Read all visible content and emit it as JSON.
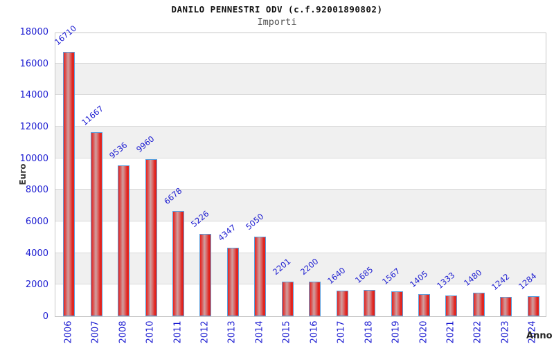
{
  "header": {
    "title": "DANILO PENNESTRI ODV (c.f.92001890802)",
    "subtitle": "Importi"
  },
  "chart_data": {
    "type": "bar",
    "title": "DANILO PENNESTRI ODV (c.f.92001890802)",
    "subtitle": "Importi",
    "xlabel": "Anno",
    "ylabel": "Euro",
    "categories": [
      "2006",
      "2007",
      "2008",
      "2010",
      "2011",
      "2012",
      "2013",
      "2014",
      "2015",
      "2016",
      "2017",
      "2018",
      "2019",
      "2020",
      "2021",
      "2022",
      "2023",
      "2024"
    ],
    "values": [
      16710,
      11667,
      9536,
      9960,
      6678,
      5226,
      4347,
      5050,
      2201,
      2200,
      1640,
      1685,
      1567,
      1405,
      1333,
      1480,
      1242,
      1284
    ],
    "ylim": [
      0,
      18000
    ],
    "ytick_step": 2000,
    "yticks": [
      0,
      2000,
      4000,
      6000,
      8000,
      10000,
      12000,
      14000,
      16000,
      18000
    ],
    "grid": "horizontal gridlines every 2000 with alternating gray bands",
    "legend": "none",
    "bar_labels_rotated_deg": -40,
    "xtick_labels_rotated_deg": -90,
    "colors": {
      "bar_edge_fill": "#e8251f",
      "bar_center_fill": "#cfa0a0",
      "bar_border": "#5b9fdd",
      "tick_label": "#1b1bd1",
      "value_label": "#1b1bd1",
      "band_gray": "#f0f0f0",
      "gridline": "#d9d9d9",
      "plot_border": "#c6c6c6",
      "title_color": "#111111",
      "subtitle_color": "#555555",
      "axis_title_color": "#3a3a3a",
      "background": "#ffffff"
    }
  }
}
